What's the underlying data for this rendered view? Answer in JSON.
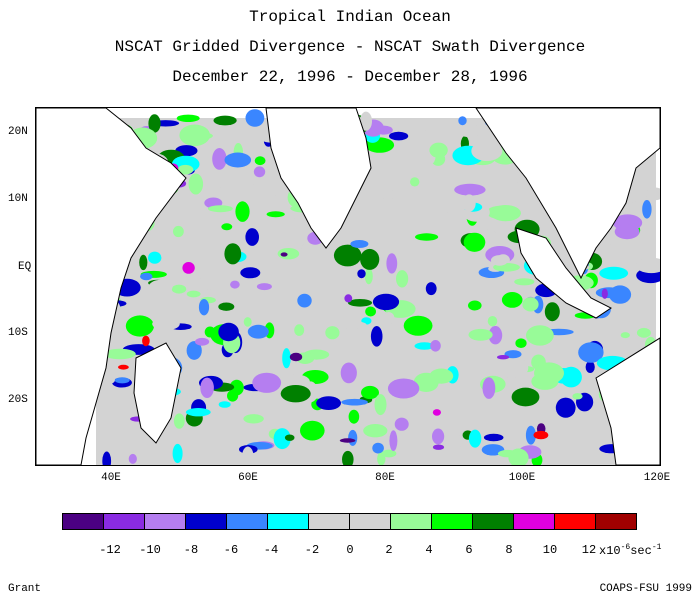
{
  "title": {
    "line1": "Tropical Indian Ocean",
    "line2": "NSCAT Gridded Divergence - NSCAT Swath Divergence",
    "line3": "December 22, 1996 - December 28, 1996"
  },
  "map": {
    "lat_labels": [
      "20N",
      "10N",
      "EQ",
      "10S",
      "20S"
    ],
    "lon_labels": [
      "40E",
      "60E",
      "80E",
      "100E",
      "120E"
    ],
    "lon_range": [
      30,
      120
    ],
    "lat_range": [
      -29,
      24
    ]
  },
  "colorbar": {
    "colors": [
      "#4b0082",
      "#8a2be2",
      "#b57ef0",
      "#0000cd",
      "#3a86ff",
      "#00ffff",
      "#d3d3d3",
      "#d3d3d3",
      "#98fb98",
      "#00ff00",
      "#008000",
      "#e000e0",
      "#ff0000",
      "#a00000"
    ],
    "tick_labels": [
      "-12",
      "-10",
      "-8",
      "-6",
      "-4",
      "-2",
      "0",
      "2",
      "4",
      "6",
      "8",
      "10",
      "12"
    ],
    "unit_prefix": "x10",
    "unit_exp": "-6",
    "unit_suffix": "sec",
    "unit_exp2": "-1"
  },
  "footer": {
    "author": "Grant",
    "credit": "COAPS-FSU 1999"
  }
}
